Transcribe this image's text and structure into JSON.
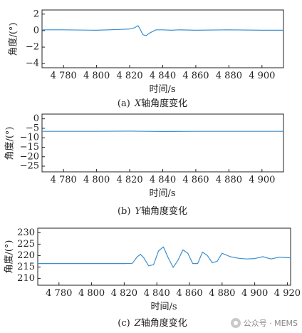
{
  "chart_data": [
    {
      "type": "line",
      "caption": "(a) X轴角度变化",
      "caption_prefix": "(a)",
      "caption_axis": "X",
      "caption_suffix": "轴角度变化",
      "xlabel": "时间/s",
      "ylabel": "角度/(°)",
      "xlim": [
        4767,
        4913
      ],
      "ylim": [
        -4.5,
        2.5
      ],
      "xticks": [
        4780,
        4800,
        4820,
        4840,
        4860,
        4880,
        4900
      ],
      "xtick_labels": [
        "4 780",
        "4 800",
        "4 820",
        "4 840",
        "4 860",
        "4 880",
        "4 900"
      ],
      "yticks": [
        2,
        0,
        -2,
        -4
      ],
      "ytick_labels": [
        "2",
        "0",
        "−2",
        "−4"
      ],
      "series": [
        {
          "color": "#3a8fcf",
          "x": [
            4767,
            4780,
            4800,
            4815,
            4820,
            4823,
            4825,
            4826,
            4828,
            4830,
            4832,
            4834,
            4836,
            4840,
            4845,
            4850,
            4860,
            4880,
            4900,
            4913
          ],
          "y": [
            0.1,
            0.1,
            0.05,
            0.15,
            0.2,
            0.35,
            0.6,
            0.3,
            -0.5,
            -0.6,
            -0.3,
            -0.1,
            0.1,
            0.1,
            0.05,
            0.1,
            0.05,
            0.1,
            0.05,
            0.05
          ]
        }
      ]
    },
    {
      "type": "line",
      "caption": "(b) Y轴角度变化",
      "caption_prefix": "(b)",
      "caption_axis": "Y",
      "caption_suffix": "轴角度变化",
      "xlabel": "时间/s",
      "ylabel": "角度/(°)",
      "xlim": [
        4767,
        4913
      ],
      "ylim": [
        -28,
        2.5
      ],
      "xticks": [
        4780,
        4800,
        4820,
        4840,
        4860,
        4880,
        4900
      ],
      "xtick_labels": [
        "4 780",
        "4 800",
        "4 820",
        "4 840",
        "4 860",
        "4 880",
        "4 900"
      ],
      "yticks": [
        0,
        -5,
        -10,
        -15,
        -20,
        -25
      ],
      "ytick_labels": [
        "0",
        "−5",
        "−10",
        "−15",
        "−20",
        "−25"
      ],
      "series": [
        {
          "color": "#3a8fcf",
          "x": [
            4767,
            4800,
            4820,
            4830,
            4840,
            4860,
            4880,
            4913
          ],
          "y": [
            -6.6,
            -6.6,
            -6.5,
            -6.6,
            -6.7,
            -6.6,
            -6.6,
            -6.6
          ]
        }
      ]
    },
    {
      "type": "line",
      "caption": "(c) Z轴角度变化",
      "caption_prefix": "(c)",
      "caption_axis": "Z",
      "caption_suffix": "轴角度变化",
      "xlabel": "时间/s",
      "ylabel": "角度/(°)",
      "xlim": [
        4767,
        4922
      ],
      "ylim": [
        207,
        232
      ],
      "xticks": [
        4780,
        4800,
        4820,
        4840,
        4860,
        4880,
        4900,
        4920
      ],
      "xtick_labels": [
        "4 780",
        "4 800",
        "4 820",
        "4 840",
        "4 860",
        "4 880",
        "4 900",
        "4 920"
      ],
      "yticks": [
        230,
        225,
        220,
        215,
        210
      ],
      "ytick_labels": [
        "230",
        "225",
        "220",
        "215",
        "210"
      ],
      "series": [
        {
          "color": "#3a8fcf",
          "x": [
            4767,
            4780,
            4800,
            4820,
            4825,
            4828,
            4830,
            4832,
            4835,
            4838,
            4841,
            4844,
            4847,
            4850,
            4853,
            4856,
            4859,
            4862,
            4865,
            4868,
            4871,
            4874,
            4877,
            4880,
            4885,
            4890,
            4895,
            4900,
            4905,
            4910,
            4915,
            4922
          ],
          "y": [
            216.5,
            216.5,
            216.5,
            216.5,
            216.6,
            219.5,
            220.5,
            219.0,
            215.5,
            216.0,
            222.0,
            223.8,
            219.0,
            214.8,
            218.0,
            222.5,
            221.0,
            216.5,
            216.5,
            221.5,
            220.0,
            216.8,
            217.5,
            221.0,
            219.5,
            218.8,
            218.5,
            218.7,
            219.5,
            218.5,
            219.3,
            219.0
          ]
        }
      ]
    }
  ],
  "watermark": "公众号 · MEMS"
}
